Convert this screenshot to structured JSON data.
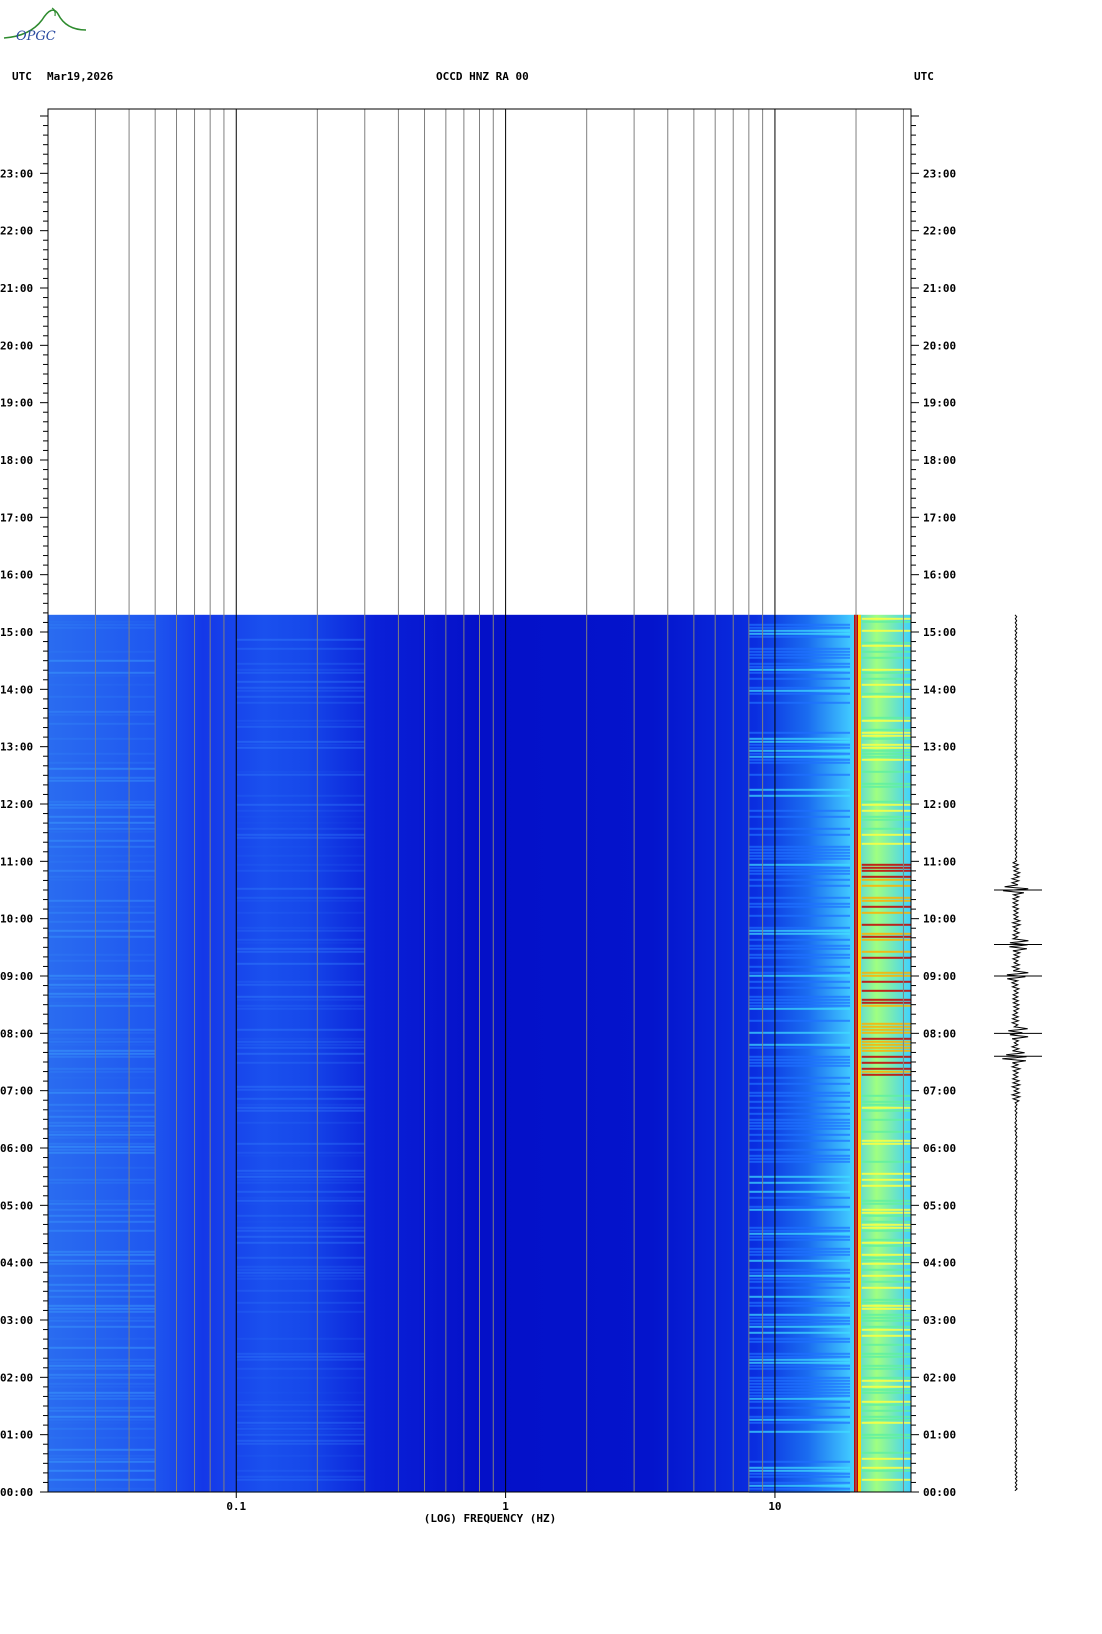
{
  "header": {
    "left_utc": "UTC",
    "date": "Mar19,2026",
    "station": "OCCD HNZ RA 00",
    "right_utc": "UTC"
  },
  "logo": {
    "text": "OPGC"
  },
  "colors": {
    "background_low": "#0000c8",
    "mid": "#00c8ff",
    "high": "#ffff00",
    "peak": "#c80000",
    "grid_minor": "#808080",
    "grid_major": "#000000"
  },
  "chart_data": {
    "type": "heatmap",
    "title": "OCCD HNZ RA 00",
    "xlabel": "(LOG) FREQUENCY (HZ)",
    "ylabel": "UTC",
    "x_scale": "log",
    "xlim": [
      0.02,
      32
    ],
    "x_major_ticks": [
      0.1,
      1,
      10
    ],
    "x_tick_labels": [
      "0.1",
      "1",
      "10"
    ],
    "ylim_hours": [
      0,
      24
    ],
    "y_tick_labels": [
      "00:00",
      "01:00",
      "02:00",
      "03:00",
      "04:00",
      "05:00",
      "06:00",
      "07:00",
      "08:00",
      "09:00",
      "10:00",
      "11:00",
      "12:00",
      "13:00",
      "14:00",
      "15:00",
      "16:00",
      "17:00",
      "18:00",
      "19:00",
      "20:00",
      "21:00",
      "22:00",
      "23:00"
    ],
    "data_end_hour": 15.3,
    "persistent_peak_hz": 20,
    "energetic_band_hz": [
      8,
      32
    ],
    "seismogram_events_hours": [
      10.5,
      9.55,
      9.0,
      8.0,
      7.6
    ],
    "note_grid": "minor gridlines at 2–9 × each decade"
  }
}
